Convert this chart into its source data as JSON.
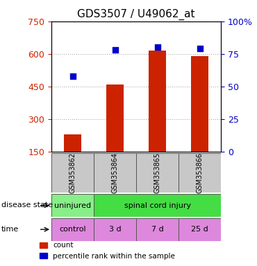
{
  "title": "GDS3507 / U49062_at",
  "samples": [
    "GSM353862",
    "GSM353864",
    "GSM353865",
    "GSM353866"
  ],
  "counts": [
    230,
    460,
    615,
    590
  ],
  "percentiles": [
    58,
    78,
    80,
    79
  ],
  "ylim_left": [
    150,
    750
  ],
  "ylim_right": [
    0,
    100
  ],
  "yticks_left": [
    150,
    300,
    450,
    600,
    750
  ],
  "yticks_right": [
    0,
    25,
    50,
    75,
    100
  ],
  "bar_color": "#cc2200",
  "dot_color": "#0000cc",
  "bar_width": 0.4,
  "disease_state_colors": [
    "#88ee88",
    "#44dd44"
  ],
  "disease_labels": [
    "uninjured",
    "spinal cord injury"
  ],
  "time_color": "#dd88dd",
  "time_labels": [
    "control",
    "3 d",
    "7 d",
    "25 d"
  ],
  "label_color_left": "#cc2200",
  "label_color_right": "#0000cc",
  "grid_color": "#aaaaaa",
  "legend_count_label": "count",
  "legend_pct_label": "percentile rank within the sample"
}
